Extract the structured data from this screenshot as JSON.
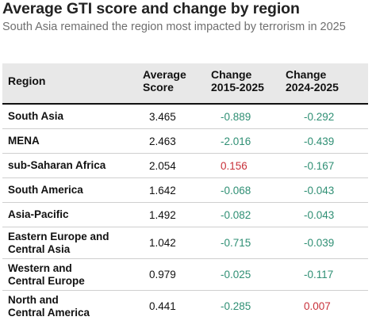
{
  "title": "Average GTI score and change by region",
  "subtitle": "South Asia remained the region most impacted by terrorism in 2025",
  "colors": {
    "decrease": "#2f8f74",
    "increase": "#c8313a",
    "header_bg": "#e8e8e8"
  },
  "table": {
    "headers": [
      "Region",
      "Average Score",
      "Change 2015-2025",
      "Change 2024-2025"
    ],
    "rows": [
      {
        "region": "South Asia",
        "score": "3.465",
        "change_2015_2025": "-0.889",
        "change_2024_2025": "-0.292"
      },
      {
        "region": "MENA",
        "score": "2.463",
        "change_2015_2025": "-2.016",
        "change_2024_2025": "-0.439"
      },
      {
        "region": "sub-Saharan Africa",
        "score": "2.054",
        "change_2015_2025": "0.156",
        "change_2024_2025": "-0.167"
      },
      {
        "region": "South America",
        "score": "1.642",
        "change_2015_2025": "-0.068",
        "change_2024_2025": "-0.043"
      },
      {
        "region": "Asia-Pacific",
        "score": "1.492",
        "change_2015_2025": "-0.082",
        "change_2024_2025": "-0.043"
      },
      {
        "region": "Eastern Europe and Central Asia",
        "score": "1.042",
        "change_2015_2025": "-0.715",
        "change_2024_2025": "-0.039"
      },
      {
        "region": "Western and Central Europe",
        "score": "0.979",
        "change_2015_2025": "-0.025",
        "change_2024_2025": "-0.117"
      },
      {
        "region": "North and Central America",
        "score": "0.441",
        "change_2015_2025": "-0.285",
        "change_2024_2025": "0.007"
      }
    ]
  }
}
